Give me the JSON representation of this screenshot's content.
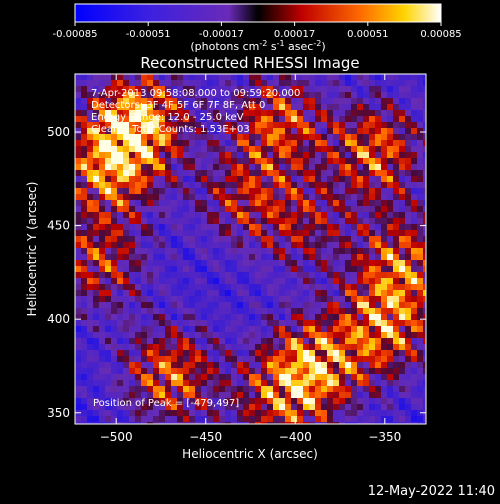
{
  "chart_data": {
    "type": "heatmap",
    "title": "Reconstructed RHESSI Image",
    "xlabel": "Heliocentric X (arcsec)",
    "ylabel": "Heliocentric Y (arcsec)",
    "xlim": [
      -523,
      -327
    ],
    "ylim": [
      344,
      531
    ],
    "x_ticks": [
      -500,
      -450,
      -400,
      -350
    ],
    "y_ticks": [
      350,
      400,
      450,
      500
    ],
    "colorbar": {
      "min": -0.00085,
      "max": 0.00085,
      "tick_values": [
        -0.00085,
        -0.00051,
        -0.00017,
        0.00017,
        0.00051,
        0.00085
      ],
      "tick_labels": [
        "-0.00085",
        "-0.00051",
        "-0.00017",
        "0.00017",
        "0.00051",
        "0.00085"
      ],
      "unit_prefix": "(photons cm",
      "unit_exp1": "-2",
      "unit_mid1": " s",
      "unit_exp2": "-1",
      "unit_mid2": " asec",
      "unit_exp3": "-2",
      "unit_suffix": ")"
    },
    "annotations": {
      "time_range": "7-Apr-2013 09:58:08.000 to 09:59:20.000",
      "detectors": "Detectors: 3F 4F 5F 6F 7F 8F, Att 0",
      "energy": "Energy Range: 12.0 - 25.0 keV",
      "clean": "Clean    Total Counts: 1.53E+03",
      "peak": "Position of Peak = [-479,497]"
    },
    "peak": [
      -479,
      497
    ],
    "emission_sources": [
      {
        "x": -488,
        "y": 505,
        "strength": 1.0
      },
      {
        "x": -505,
        "y": 480,
        "strength": 0.75
      },
      {
        "x": -410,
        "y": 505,
        "strength": 0.7
      },
      {
        "x": -355,
        "y": 490,
        "strength": 0.75
      },
      {
        "x": -340,
        "y": 430,
        "strength": 0.7
      },
      {
        "x": -350,
        "y": 395,
        "strength": 0.75
      },
      {
        "x": -390,
        "y": 375,
        "strength": 0.85
      },
      {
        "x": -470,
        "y": 370,
        "strength": 0.75
      },
      {
        "x": -510,
        "y": 430,
        "strength": 0.6
      },
      {
        "x": -430,
        "y": 465,
        "strength": 0.5
      },
      {
        "x": -410,
        "y": 355,
        "strength": 0.55
      },
      {
        "x": -395,
        "y": 450,
        "strength": 0.45
      }
    ]
  },
  "footer": {
    "date": "12-May-2022 11:40"
  }
}
